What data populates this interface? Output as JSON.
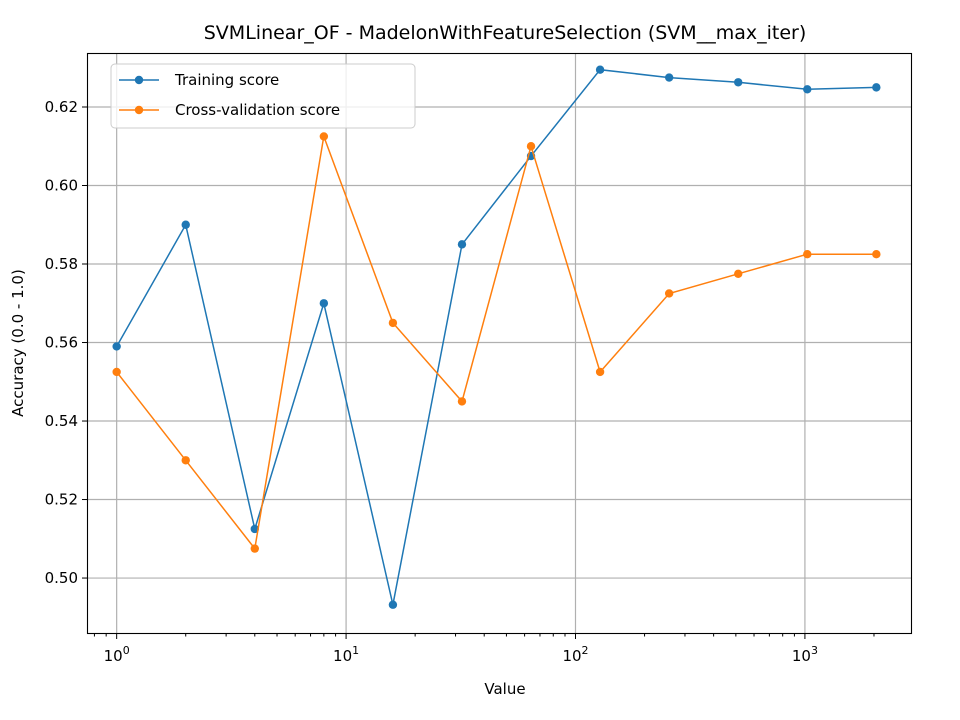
{
  "chart_data": {
    "type": "line",
    "title": "SVMLinear_OF - MadelonWithFeatureSelection (SVM__max_iter)",
    "xlabel": "Value",
    "ylabel": "Accuracy (0.0 - 1.0)",
    "xscale": "log",
    "xlim": [
      0.75,
      2900
    ],
    "ylim": [
      0.486,
      0.6335
    ],
    "x_tick_labels": [
      {
        "base": "10",
        "exp": "0"
      },
      {
        "base": "10",
        "exp": "1"
      },
      {
        "base": "10",
        "exp": "2"
      },
      {
        "base": "10",
        "exp": "3"
      }
    ],
    "y_ticks": [
      0.5,
      0.52,
      0.54,
      0.56,
      0.58,
      0.6,
      0.62
    ],
    "y_tick_labels": [
      "0.50",
      "0.52",
      "0.54",
      "0.56",
      "0.58",
      "0.60",
      "0.62"
    ],
    "grid": true,
    "legend_position": "top-left",
    "x": [
      1,
      2,
      4,
      8,
      16,
      32,
      64,
      128,
      256,
      512,
      1024,
      2048
    ],
    "series": [
      {
        "name": "Training score",
        "color": "#1f77b4",
        "values": [
          0.559,
          0.59,
          0.5125,
          0.57,
          0.4932,
          0.585,
          0.6075,
          0.6295,
          0.6275,
          0.6263,
          0.6245,
          0.625
        ]
      },
      {
        "name": "Cross-validation score",
        "color": "#ff7f0e",
        "values": [
          0.5525,
          0.53,
          0.5075,
          0.6125,
          0.565,
          0.545,
          0.61,
          0.5525,
          0.5725,
          0.5775,
          0.5825,
          0.5825
        ]
      }
    ]
  }
}
